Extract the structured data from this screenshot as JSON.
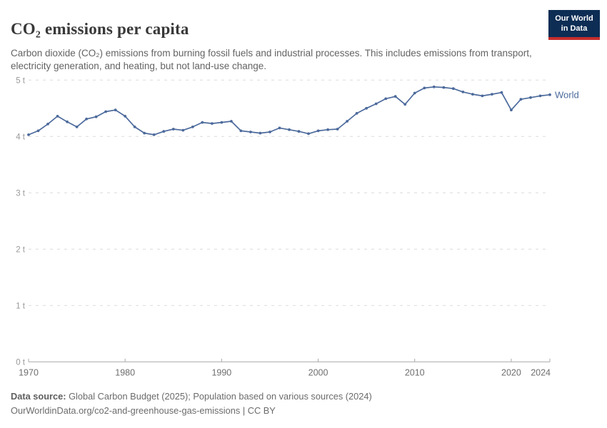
{
  "header": {
    "title": "CO₂ emissions per capita",
    "subtitle": "Carbon dioxide (CO₂) emissions from burning fossil fuels and industrial processes. This includes emissions from transport, electricity generation, and heating, but not land-use change."
  },
  "logo": {
    "line1": "Our World",
    "line2": "in Data"
  },
  "chart_data": {
    "type": "line",
    "title": "CO₂ emissions per capita",
    "xlabel": "",
    "ylabel": "",
    "x_range": [
      1970,
      2024
    ],
    "ylim": [
      0,
      5
    ],
    "grid": "horizontal-dashed",
    "legend_position": "entity-label-at-line-end",
    "y_ticks": [
      {
        "value": 0,
        "label": "0 t"
      },
      {
        "value": 1,
        "label": "1 t"
      },
      {
        "value": 2,
        "label": "2 t"
      },
      {
        "value": 3,
        "label": "3 t"
      },
      {
        "value": 4,
        "label": "4 t"
      },
      {
        "value": 5,
        "label": "5 t"
      }
    ],
    "x_ticks": [
      {
        "value": 1970,
        "label": "1970"
      },
      {
        "value": 1980,
        "label": "1980"
      },
      {
        "value": 1990,
        "label": "1990"
      },
      {
        "value": 2000,
        "label": "2000"
      },
      {
        "value": 2010,
        "label": "2010"
      },
      {
        "value": 2020,
        "label": "2020"
      },
      {
        "value": 2024,
        "label": "2024"
      }
    ],
    "series": [
      {
        "name": "World",
        "color": "#4c6a9c",
        "years": [
          1970,
          1971,
          1972,
          1973,
          1974,
          1975,
          1976,
          1977,
          1978,
          1979,
          1980,
          1981,
          1982,
          1983,
          1984,
          1985,
          1986,
          1987,
          1988,
          1989,
          1990,
          1991,
          1992,
          1993,
          1994,
          1995,
          1996,
          1997,
          1998,
          1999,
          2000,
          2001,
          2002,
          2003,
          2004,
          2005,
          2006,
          2007,
          2008,
          2009,
          2010,
          2011,
          2012,
          2013,
          2014,
          2015,
          2016,
          2017,
          2018,
          2019,
          2020,
          2021,
          2022,
          2023,
          2024
        ],
        "values": [
          4.03,
          4.1,
          4.22,
          4.36,
          4.26,
          4.17,
          4.31,
          4.35,
          4.44,
          4.47,
          4.36,
          4.17,
          4.06,
          4.03,
          4.09,
          4.13,
          4.11,
          4.17,
          4.25,
          4.23,
          4.25,
          4.27,
          4.1,
          4.08,
          4.06,
          4.08,
          4.15,
          4.12,
          4.09,
          4.05,
          4.1,
          4.12,
          4.13,
          4.27,
          4.41,
          4.5,
          4.58,
          4.67,
          4.71,
          4.57,
          4.77,
          4.86,
          4.88,
          4.87,
          4.85,
          4.79,
          4.75,
          4.72,
          4.75,
          4.78,
          4.47,
          4.66,
          4.69,
          4.72,
          4.74
        ]
      }
    ]
  },
  "footer": {
    "source_label": "Data source:",
    "source_text": "Global Carbon Budget (2025); Population based on various sources (2024)",
    "note": "OurWorldinData.org/co2-and-greenhouse-gas-emissions | CC BY"
  },
  "colors": {
    "accent_line": "#4c6a9c",
    "logo_bg": "#0d2d54",
    "logo_red": "#c62d2d",
    "gridline": "#dcdcdc",
    "axis": "#a8a8a8",
    "y_tick_label": "#999999",
    "x_tick_label": "#6e6e6e"
  }
}
